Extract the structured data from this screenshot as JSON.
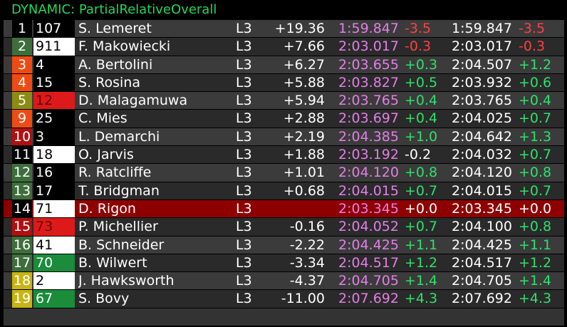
{
  "header": {
    "title": "DYNAMIC: PartialRelativeOverall"
  },
  "colors": {
    "title": "#22d85a",
    "purple": "#e47ee8",
    "green": "#2fe06a",
    "red": "#ff4040",
    "player_row": "#8e0000"
  },
  "rows": [
    {
      "pos": "1",
      "pos_bg": "#000000",
      "num": "107",
      "num_bg": "#000000",
      "num_fg": "#ffffff",
      "name": "S. Lemeret",
      "lap": "L3",
      "gap": "+19.36",
      "last": "1:59.847",
      "last_color": "purple",
      "last_delta": "-3.5",
      "last_delta_color": "red",
      "best": "1:59.847",
      "best_delta": "-3.5",
      "best_delta_color": "red"
    },
    {
      "pos": "2",
      "pos_bg": "#3e6e3c",
      "num": "911",
      "num_bg": "#ffffff",
      "num_fg": "#000000",
      "name": "F. Makowiecki",
      "lap": "L3",
      "gap": "+7.66",
      "last": "2:03.017",
      "last_color": "purple",
      "last_delta": "-0.3",
      "last_delta_color": "red",
      "best": "2:03.017",
      "best_delta": "-0.3",
      "best_delta_color": "red"
    },
    {
      "pos": "3",
      "pos_bg": "#f04a14",
      "num": "4",
      "num_bg": "#000000",
      "num_fg": "#ffffff",
      "name": "A. Bertolini",
      "lap": "L3",
      "gap": "+6.27",
      "last": "2:03.655",
      "last_color": "purple",
      "last_delta": "+0.3",
      "last_delta_color": "green",
      "best": "2:04.507",
      "best_delta": "+1.2",
      "best_delta_color": "green"
    },
    {
      "pos": "4",
      "pos_bg": "#f04a14",
      "num": "15",
      "num_bg": "#000000",
      "num_fg": "#ffffff",
      "name": "S. Rosina",
      "lap": "L3",
      "gap": "+5.88",
      "last": "2:03.827",
      "last_color": "purple",
      "last_delta": "+0.5",
      "last_delta_color": "green",
      "best": "2:03.932",
      "best_delta": "+0.6",
      "best_delta_color": "green"
    },
    {
      "pos": "5",
      "pos_bg": "#8c8c14",
      "num": "12",
      "num_bg": "#dd1a1a",
      "num_fg": "#6a0000",
      "name": "D. Malagamuwa",
      "lap": "L3",
      "gap": "+5.94",
      "last": "2:03.765",
      "last_color": "purple",
      "last_delta": "+0.4",
      "last_delta_color": "green",
      "best": "2:03.765",
      "best_delta": "+0.4",
      "best_delta_color": "green"
    },
    {
      "pos": "9",
      "pos_bg": "#f04a14",
      "num": "25",
      "num_bg": "#000000",
      "num_fg": "#ffffff",
      "name": "C. Mies",
      "lap": "L3",
      "gap": "+2.88",
      "last": "2:03.697",
      "last_color": "purple",
      "last_delta": "+0.4",
      "last_delta_color": "green",
      "best": "2:04.025",
      "best_delta": "+0.7",
      "best_delta_color": "green"
    },
    {
      "pos": "10",
      "pos_bg": "#b01010",
      "num": "3",
      "num_bg": "#000000",
      "num_fg": "#ffffff",
      "name": "L. Demarchi",
      "lap": "L3",
      "gap": "+2.19",
      "last": "2:04.385",
      "last_color": "purple",
      "last_delta": "+1.0",
      "last_delta_color": "green",
      "best": "2:04.642",
      "best_delta": "+1.3",
      "best_delta_color": "green"
    },
    {
      "pos": "11",
      "pos_bg": "#000000",
      "num": "18",
      "num_bg": "#ffffff",
      "num_fg": "#000000",
      "name": "O. Jarvis",
      "lap": "L3",
      "gap": "+1.88",
      "last": "2:03.192",
      "last_color": "purple",
      "last_delta": "-0.2",
      "last_delta_color": "white",
      "best": "2:04.032",
      "best_delta": "+0.7",
      "best_delta_color": "green"
    },
    {
      "pos": "12",
      "pos_bg": "#3e6e3c",
      "num": "16",
      "num_bg": "#000000",
      "num_fg": "#ffffff",
      "name": "R. Ratcliffe",
      "lap": "L3",
      "gap": "+1.01",
      "last": "2:04.120",
      "last_color": "purple",
      "last_delta": "+0.8",
      "last_delta_color": "green",
      "best": "2:04.120",
      "best_delta": "+0.8",
      "best_delta_color": "green"
    },
    {
      "pos": "13",
      "pos_bg": "#3e6e3c",
      "num": "17",
      "num_bg": "#000000",
      "num_fg": "#ffffff",
      "name": "T. Bridgman",
      "lap": "L3",
      "gap": "+0.68",
      "last": "2:04.015",
      "last_color": "purple",
      "last_delta": "+0.7",
      "last_delta_color": "green",
      "best": "2:04.015",
      "best_delta": "+0.7",
      "best_delta_color": "green"
    },
    {
      "pos": "14",
      "pos_bg": "#000000",
      "num": "71",
      "num_bg": "#ffffff",
      "num_fg": "#000000",
      "name": "D. Rigon",
      "lap": "L3",
      "gap": "",
      "last": "2:03.345",
      "last_color": "purple",
      "last_delta": "+0.0",
      "last_delta_color": "white",
      "best": "2:03.345",
      "best_delta": "+0.0",
      "best_delta_color": "white",
      "player": true
    },
    {
      "pos": "15",
      "pos_bg": "#b01010",
      "num": "73",
      "num_bg": "#dd1a1a",
      "num_fg": "#6a0000",
      "name": "P. Michellier",
      "lap": "L3",
      "gap": "-0.16",
      "last": "2:04.052",
      "last_color": "purple",
      "last_delta": "+0.7",
      "last_delta_color": "green",
      "best": "2:04.100",
      "best_delta": "+0.8",
      "best_delta_color": "green"
    },
    {
      "pos": "16",
      "pos_bg": "#3e6e3c",
      "num": "41",
      "num_bg": "#ffffff",
      "num_fg": "#000000",
      "name": "B. Schneider",
      "lap": "L3",
      "gap": "-2.22",
      "last": "2:04.425",
      "last_color": "purple",
      "last_delta": "+1.1",
      "last_delta_color": "green",
      "best": "2:04.425",
      "best_delta": "+1.1",
      "best_delta_color": "green"
    },
    {
      "pos": "17",
      "pos_bg": "#3e6e3c",
      "num": "70",
      "num_bg": "#1a8c3a",
      "num_fg": "#ffffff",
      "name": "B. Wilwert",
      "lap": "L3",
      "gap": "-3.34",
      "last": "2:04.517",
      "last_color": "purple",
      "last_delta": "+1.2",
      "last_delta_color": "green",
      "best": "2:04.517",
      "best_delta": "+1.2",
      "best_delta_color": "green"
    },
    {
      "pos": "18",
      "pos_bg": "#c8b414",
      "num": "2",
      "num_bg": "#ffffff",
      "num_fg": "#000000",
      "name": "J. Hawksworth",
      "lap": "L3",
      "gap": "-4.37",
      "last": "2:04.705",
      "last_color": "purple",
      "last_delta": "+1.4",
      "last_delta_color": "green",
      "best": "2:04.705",
      "best_delta": "+1.4",
      "best_delta_color": "green"
    },
    {
      "pos": "19",
      "pos_bg": "#c8b414",
      "num": "67",
      "num_bg": "#1a8c3a",
      "num_fg": "#ffffff",
      "name": "S. Bovy",
      "lap": "L3",
      "gap": "-11.00",
      "last": "2:07.692",
      "last_color": "purple",
      "last_delta": "+4.3",
      "last_delta_color": "green",
      "best": "2:07.692",
      "best_delta": "+4.3",
      "best_delta_color": "green"
    }
  ]
}
